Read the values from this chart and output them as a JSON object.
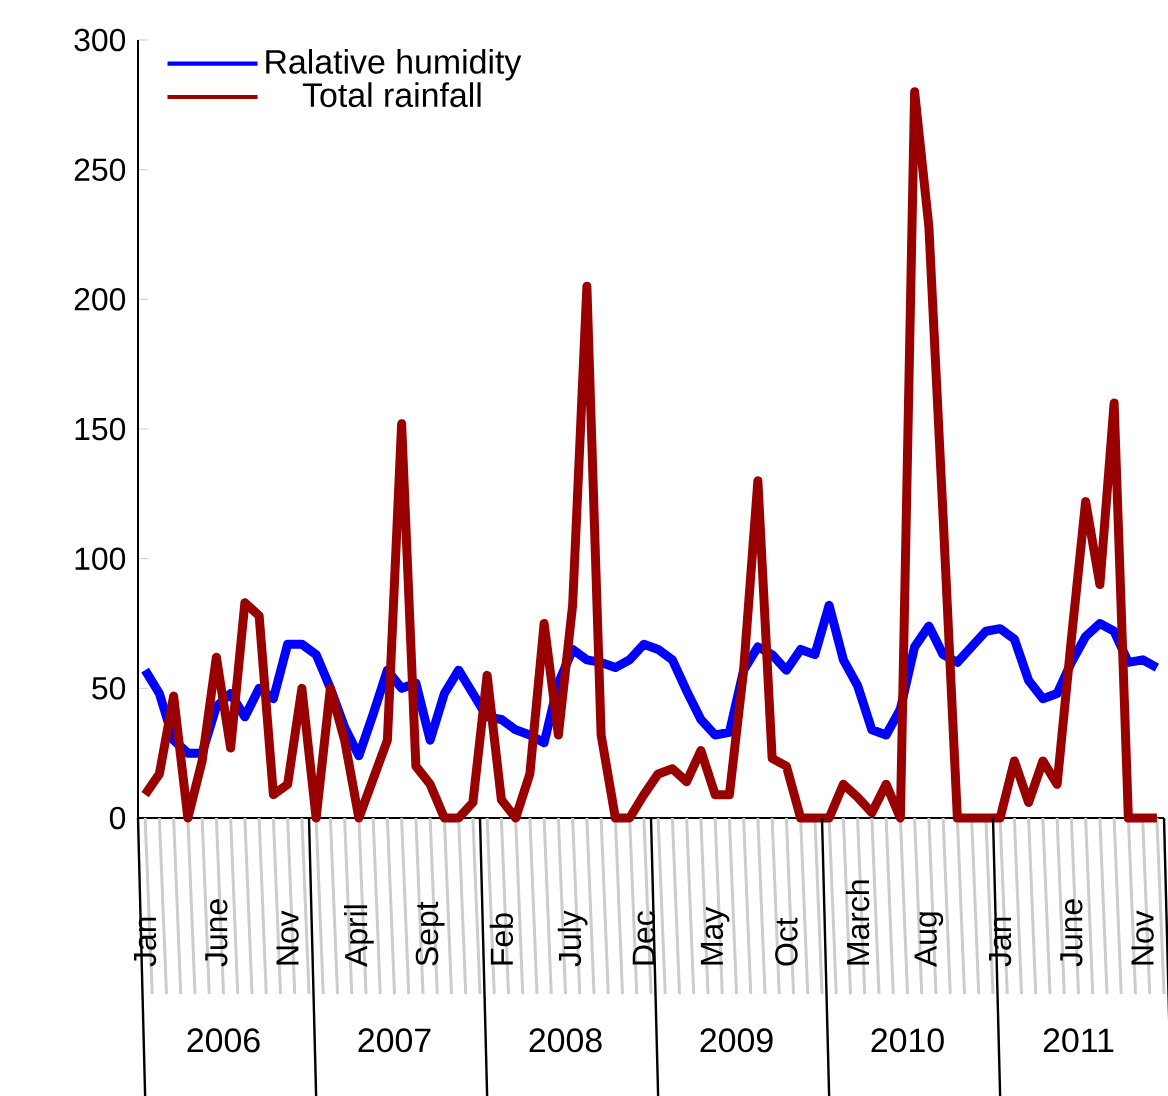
{
  "chart_data": {
    "type": "line",
    "categories": [
      "Jan",
      null,
      null,
      null,
      null,
      "June",
      null,
      null,
      null,
      null,
      "Nov",
      null,
      null,
      null,
      null,
      "April",
      null,
      null,
      null,
      null,
      "Sept",
      null,
      null,
      null,
      null,
      "Feb",
      null,
      null,
      null,
      null,
      "July",
      null,
      null,
      null,
      null,
      "Dec",
      null,
      null,
      null,
      null,
      "May",
      null,
      null,
      null,
      null,
      "Oct",
      null,
      null,
      null,
      null,
      "March",
      null,
      null,
      null,
      null,
      "Aug",
      null,
      null,
      null,
      null,
      "Jan",
      null,
      null,
      null,
      null,
      "June",
      null,
      null,
      null,
      null,
      "Nov",
      null
    ],
    "series": [
      {
        "name": "Ralative humidity",
        "color": "#0000ff",
        "values": [
          57,
          48,
          30,
          25,
          25,
          43,
          48,
          39,
          50,
          46,
          67,
          67,
          63,
          50,
          35,
          24,
          40,
          57,
          50,
          52,
          30,
          48,
          57,
          48,
          39,
          38,
          34,
          32,
          29,
          52,
          65,
          61,
          60,
          58,
          61,
          67,
          65,
          61,
          49,
          38,
          32,
          33,
          57,
          66,
          63,
          57,
          65,
          63,
          82,
          61,
          51,
          34,
          32,
          42,
          66,
          74,
          63,
          60,
          66,
          72,
          73,
          69,
          53,
          46,
          48,
          60,
          70,
          75,
          72,
          60,
          61,
          58
        ]
      },
      {
        "name": "Total rainfall",
        "color": "#990000",
        "values": [
          9,
          17,
          47,
          0,
          22,
          62,
          27,
          83,
          78,
          9,
          13,
          50,
          0,
          50,
          30,
          0,
          15,
          30,
          152,
          20,
          13,
          0,
          0,
          6,
          55,
          7,
          0,
          17,
          75,
          32,
          82,
          205,
          32,
          0,
          0,
          9,
          17,
          19,
          14,
          26,
          9,
          9,
          57,
          130,
          23,
          20,
          0,
          0,
          0,
          13,
          8,
          2,
          13,
          0,
          280,
          228,
          116,
          0,
          0,
          0,
          0,
          22,
          6,
          22,
          13,
          69,
          122,
          90,
          160,
          0,
          0,
          0
        ]
      }
    ],
    "ylim": [
      0,
      300
    ],
    "yticks": [
      0,
      50,
      100,
      150,
      200,
      250,
      300
    ],
    "legend": "top left",
    "line_style": "solid",
    "annotations": [
      "2006",
      "2007",
      "2008",
      "2009",
      "2010",
      "2011"
    ]
  }
}
